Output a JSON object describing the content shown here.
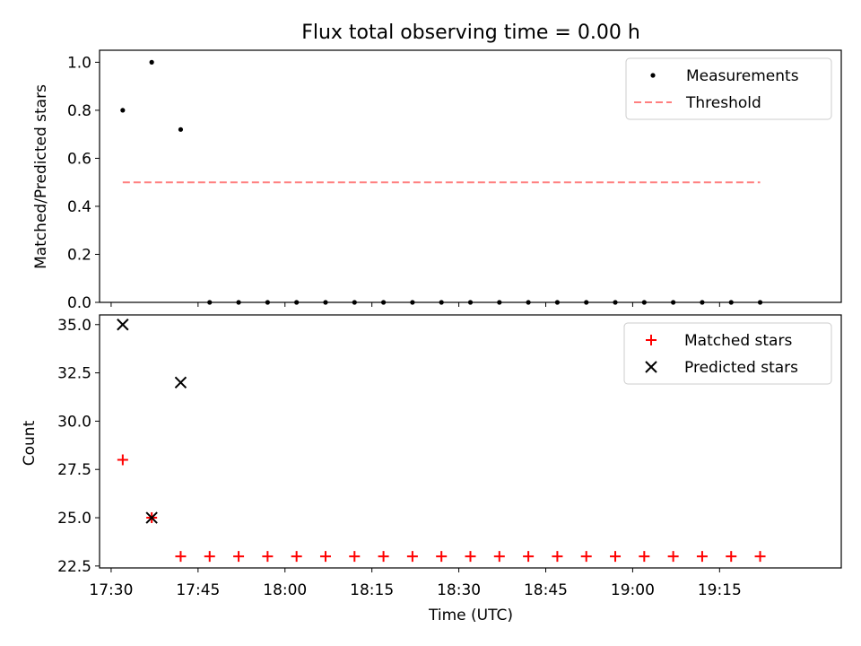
{
  "chart_data": [
    {
      "type": "scatter",
      "title": "Flux total observing time = 0.00 h",
      "xlabel": "",
      "ylabel": "Matched/Predicted stars",
      "ylim": [
        0,
        1.05
      ],
      "yticks": [
        "0.0",
        "0.2",
        "0.4",
        "0.6",
        "0.8",
        "1.0"
      ],
      "legend_position": "top-right",
      "x": [
        "17:32",
        "17:37",
        "17:42",
        "17:47",
        "17:52",
        "17:57",
        "18:02",
        "18:07",
        "18:12",
        "18:17",
        "18:22",
        "18:27",
        "18:32",
        "18:37",
        "18:42",
        "18:47",
        "18:52",
        "18:57",
        "19:02",
        "19:07",
        "19:12",
        "19:17",
        "19:22"
      ],
      "series": [
        {
          "name": "Measurements",
          "kind": "scatter",
          "marker": "dot",
          "color": "#000000",
          "values": [
            0.8,
            1.0,
            0.72,
            0,
            0,
            0,
            0,
            0,
            0,
            0,
            0,
            0,
            0,
            0,
            0,
            0,
            0,
            0,
            0,
            0,
            0,
            0,
            0
          ]
        },
        {
          "name": "Threshold",
          "kind": "dashed-line",
          "color": "#ff7f7f",
          "value": 0.5
        }
      ]
    },
    {
      "type": "scatter",
      "title": "",
      "xlabel": "Time (UTC)",
      "ylabel": "Count",
      "ylim": [
        22.4,
        35.5
      ],
      "yticks": [
        "22.5",
        "25.0",
        "27.5",
        "30.0",
        "32.5",
        "35.0"
      ],
      "xlim": [
        "17:28",
        "19:36"
      ],
      "xticks": [
        "17:30",
        "17:45",
        "18:00",
        "18:15",
        "18:30",
        "18:45",
        "19:00",
        "19:15"
      ],
      "legend_position": "top-right",
      "x": [
        "17:32",
        "17:37",
        "17:42",
        "17:47",
        "17:52",
        "17:57",
        "18:02",
        "18:07",
        "18:12",
        "18:17",
        "18:22",
        "18:27",
        "18:32",
        "18:37",
        "18:42",
        "18:47",
        "18:52",
        "18:57",
        "19:02",
        "19:07",
        "19:12",
        "19:17",
        "19:22"
      ],
      "series": [
        {
          "name": "Matched stars",
          "marker": "plus",
          "color": "#ff0000",
          "values": [
            28,
            25,
            23,
            23,
            23,
            23,
            23,
            23,
            23,
            23,
            23,
            23,
            23,
            23,
            23,
            23,
            23,
            23,
            23,
            23,
            23,
            23,
            23
          ]
        },
        {
          "name": "Predicted stars",
          "marker": "x",
          "color": "#000000",
          "values": [
            35,
            25,
            32,
            null,
            null,
            null,
            null,
            null,
            null,
            null,
            null,
            null,
            null,
            null,
            null,
            null,
            null,
            null,
            null,
            null,
            null,
            null,
            null
          ]
        }
      ]
    }
  ]
}
